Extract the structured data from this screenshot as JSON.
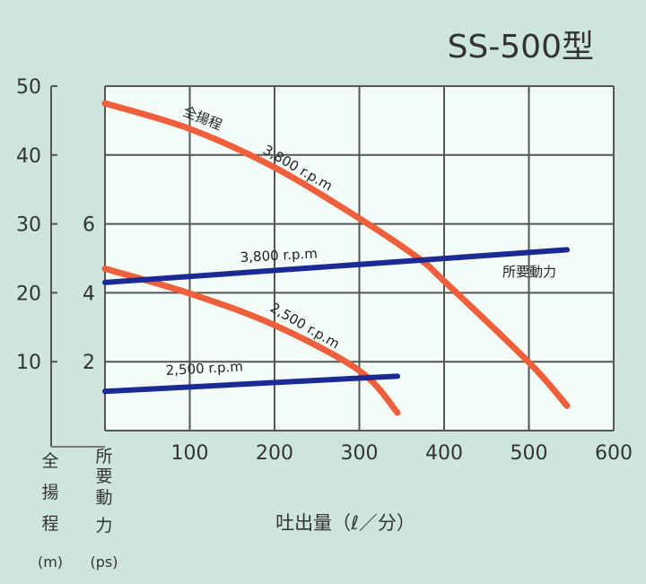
{
  "chart_data": {
    "type": "line",
    "title": "SS-500型",
    "xlabel": "吐出量（ℓ／分）",
    "ylabel_left": {
      "chars": [
        "全",
        "揚",
        "程"
      ],
      "unit": "(m)"
    },
    "ylabel_right": {
      "chars": [
        "所",
        "要",
        "動",
        "力"
      ],
      "unit": "(ps)"
    },
    "xlim": [
      0,
      600
    ],
    "ylim_head": [
      0,
      50
    ],
    "ylim_power": [
      0,
      10
    ],
    "x_ticks": [
      "100",
      "200",
      "300",
      "400",
      "500",
      "600"
    ],
    "head_ticks": [
      "50",
      "40",
      "30",
      "20",
      "10"
    ],
    "power_ticks": [
      "6",
      "4",
      "2"
    ],
    "grid": true,
    "colors": {
      "head": "#ef5f3c",
      "power": "#1c2a96",
      "plot_bg": "#f4fcf7",
      "page_bg": "#cde5dc"
    },
    "series": [
      {
        "name": "3,800 r.p.m",
        "kind": "head",
        "axis": "head",
        "x": [
          0,
          100,
          200,
          300,
          370,
          400,
          500,
          545
        ],
        "y": [
          47.5,
          43.8,
          38.2,
          30.8,
          25,
          21.7,
          9.9,
          3.6
        ]
      },
      {
        "name": "2,500 r.p.m",
        "kind": "head",
        "axis": "head",
        "x": [
          0,
          100,
          200,
          300,
          345
        ],
        "y": [
          23.5,
          19.9,
          15.3,
          8.7,
          2.6
        ]
      },
      {
        "name": "3,800 r.p.m",
        "kind": "power",
        "axis": "power",
        "x": [
          0,
          545
        ],
        "y": [
          4.3,
          5.25
        ]
      },
      {
        "name": "2,500 r.p.m",
        "kind": "power",
        "axis": "power",
        "x": [
          0,
          345
        ],
        "y": [
          1.14,
          1.58
        ]
      }
    ],
    "annotations": {
      "head_label": "全揚程",
      "head_3800": "3,800 r.p.m",
      "power_3800": "3,800 r.p.m",
      "power_label": "所要動力",
      "head_2500": "2,500 r.p.m",
      "power_2500": "2,500 r.p.m"
    }
  }
}
